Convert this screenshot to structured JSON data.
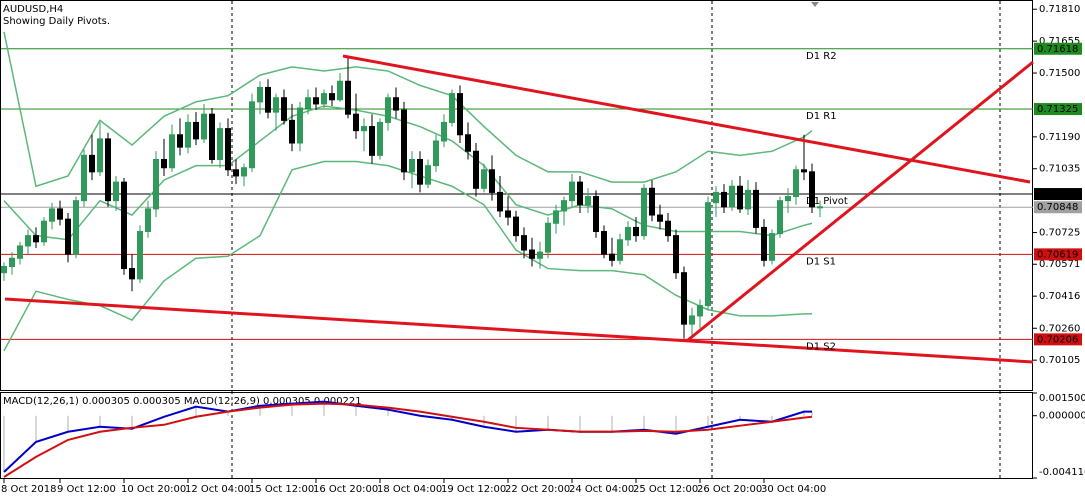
{
  "chart_data": {
    "type": "candlestick",
    "title": "AUDUSD,H4",
    "subtitle": "Showing Daily Pivots.",
    "categories": [
      "8 Oct 2018",
      null,
      null,
      null,
      null,
      null,
      null,
      "9 Oct 12:00",
      null,
      null,
      null,
      null,
      null,
      null,
      null,
      "10 Oct 20:00",
      null,
      null,
      null,
      null,
      null,
      null,
      null,
      "12 Oct 04:00",
      null,
      null,
      null,
      null,
      null,
      null,
      null,
      "15 Oct 12:00",
      null,
      null,
      null,
      null,
      null,
      null,
      null,
      "16 Oct 20:00",
      null,
      null,
      null,
      null,
      null,
      null,
      null,
      "18 Oct 04:00",
      null,
      null,
      null,
      null,
      null,
      null,
      null,
      "19 Oct 12:00",
      null,
      null,
      null,
      null,
      null,
      null,
      null,
      "22 Oct 20:00",
      null,
      null,
      null,
      null,
      null,
      null,
      null,
      "24 Oct 04:00",
      null,
      null,
      null,
      null,
      null,
      null,
      null,
      "25 Oct 12:00",
      null,
      null,
      null,
      null,
      null,
      null,
      null,
      "26 Oct 20:00",
      null,
      null,
      null,
      null,
      null,
      null,
      null,
      "30 Oct 04:00",
      null,
      null,
      null,
      null,
      null,
      null,
      null
    ],
    "ohlc": [
      [
        0.7053,
        0.7058,
        0.7049,
        0.7056
      ],
      [
        0.7056,
        0.7063,
        0.7052,
        0.706
      ],
      [
        0.706,
        0.7068,
        0.7057,
        0.7066
      ],
      [
        0.7066,
        0.7074,
        0.7062,
        0.7071
      ],
      [
        0.7071,
        0.7075,
        0.7065,
        0.7068
      ],
      [
        0.7068,
        0.708,
        0.7066,
        0.7078
      ],
      [
        0.7078,
        0.7087,
        0.7074,
        0.7084
      ],
      [
        0.7084,
        0.7088,
        0.7076,
        0.7079
      ],
      [
        0.7079,
        0.7082,
        0.7058,
        0.7062
      ],
      [
        0.7062,
        0.709,
        0.706,
        0.7088
      ],
      [
        0.7088,
        0.7113,
        0.7085,
        0.711
      ],
      [
        0.711,
        0.712,
        0.7098,
        0.7102
      ],
      [
        0.7102,
        0.7126,
        0.71,
        0.7118
      ],
      [
        0.7118,
        0.7121,
        0.7085,
        0.7088
      ],
      [
        0.7088,
        0.71,
        0.7083,
        0.7097
      ],
      [
        0.7097,
        0.7099,
        0.7052,
        0.7055
      ],
      [
        0.7055,
        0.7062,
        0.7044,
        0.705
      ],
      [
        0.705,
        0.7076,
        0.7048,
        0.7073
      ],
      [
        0.7073,
        0.7088,
        0.707,
        0.7084
      ],
      [
        0.7084,
        0.7112,
        0.708,
        0.7108
      ],
      [
        0.7108,
        0.7118,
        0.71,
        0.7104
      ],
      [
        0.7104,
        0.7125,
        0.7102,
        0.712
      ],
      [
        0.712,
        0.7128,
        0.711,
        0.7114
      ],
      [
        0.7114,
        0.713,
        0.7111,
        0.7126
      ],
      [
        0.7126,
        0.7131,
        0.7115,
        0.7118
      ],
      [
        0.7118,
        0.7135,
        0.7116,
        0.713
      ],
      [
        0.713,
        0.7133,
        0.7106,
        0.7108
      ],
      [
        0.7108,
        0.7126,
        0.7104,
        0.7123
      ],
      [
        0.7123,
        0.7128,
        0.71,
        0.7103
      ],
      [
        0.7103,
        0.7108,
        0.7096,
        0.71
      ],
      [
        0.71,
        0.7106,
        0.7095,
        0.7104
      ],
      [
        0.7104,
        0.714,
        0.7102,
        0.7136
      ],
      [
        0.7136,
        0.7146,
        0.713,
        0.7143
      ],
      [
        0.7143,
        0.7147,
        0.7128,
        0.7131
      ],
      [
        0.7131,
        0.714,
        0.7122,
        0.7138
      ],
      [
        0.7138,
        0.7142,
        0.7125,
        0.7127
      ],
      [
        0.7127,
        0.7135,
        0.7112,
        0.7116
      ],
      [
        0.7116,
        0.7136,
        0.7112,
        0.7133
      ],
      [
        0.7133,
        0.7142,
        0.713,
        0.7138
      ],
      [
        0.7138,
        0.7143,
        0.7132,
        0.7135
      ],
      [
        0.7135,
        0.7142,
        0.7133,
        0.714
      ],
      [
        0.714,
        0.7144,
        0.7134,
        0.7137
      ],
      [
        0.7137,
        0.715,
        0.7136,
        0.7146
      ],
      [
        0.7146,
        0.7158,
        0.7128,
        0.713
      ],
      [
        0.713,
        0.714,
        0.7118,
        0.7122
      ],
      [
        0.7122,
        0.7128,
        0.7112,
        0.7124
      ],
      [
        0.7124,
        0.713,
        0.7106,
        0.711
      ],
      [
        0.711,
        0.7128,
        0.7108,
        0.7126
      ],
      [
        0.7126,
        0.714,
        0.7122,
        0.7138
      ],
      [
        0.7138,
        0.7143,
        0.7128,
        0.7132
      ],
      [
        0.7132,
        0.7136,
        0.7098,
        0.7102
      ],
      [
        0.7102,
        0.7112,
        0.7094,
        0.7108
      ],
      [
        0.7108,
        0.7112,
        0.7092,
        0.7096
      ],
      [
        0.7096,
        0.7108,
        0.7094,
        0.7105
      ],
      [
        0.7105,
        0.712,
        0.7102,
        0.7117
      ],
      [
        0.7117,
        0.713,
        0.7114,
        0.7126
      ],
      [
        0.7126,
        0.7142,
        0.7124,
        0.714
      ],
      [
        0.714,
        0.7144,
        0.7116,
        0.712
      ],
      [
        0.712,
        0.7126,
        0.7108,
        0.7112
      ],
      [
        0.7112,
        0.7116,
        0.709,
        0.7094
      ],
      [
        0.7094,
        0.7106,
        0.7092,
        0.7103
      ],
      [
        0.7103,
        0.711,
        0.7088,
        0.7092
      ],
      [
        0.7092,
        0.71,
        0.708,
        0.7083
      ],
      [
        0.7083,
        0.709,
        0.7076,
        0.708
      ],
      [
        0.708,
        0.7083,
        0.7068,
        0.7071
      ],
      [
        0.7071,
        0.7075,
        0.706,
        0.7064
      ],
      [
        0.7064,
        0.707,
        0.7056,
        0.706
      ],
      [
        0.706,
        0.7068,
        0.7055,
        0.7063
      ],
      [
        0.7063,
        0.708,
        0.706,
        0.7077
      ],
      [
        0.7077,
        0.7086,
        0.7072,
        0.7083
      ],
      [
        0.7083,
        0.709,
        0.7076,
        0.7088
      ],
      [
        0.7088,
        0.7101,
        0.7085,
        0.7097
      ],
      [
        0.7097,
        0.71,
        0.7082,
        0.7086
      ],
      [
        0.7086,
        0.7094,
        0.7082,
        0.709
      ],
      [
        0.709,
        0.7093,
        0.707,
        0.7073
      ],
      [
        0.7073,
        0.7076,
        0.706,
        0.7062
      ],
      [
        0.7062,
        0.707,
        0.7056,
        0.7059
      ],
      [
        0.7059,
        0.7072,
        0.7057,
        0.7069
      ],
      [
        0.7069,
        0.7078,
        0.7066,
        0.7075
      ],
      [
        0.7075,
        0.708,
        0.7068,
        0.7071
      ],
      [
        0.7071,
        0.7096,
        0.7069,
        0.7094
      ],
      [
        0.7094,
        0.7098,
        0.7078,
        0.7081
      ],
      [
        0.7081,
        0.7086,
        0.7074,
        0.7078
      ],
      [
        0.7078,
        0.7082,
        0.7068,
        0.7071
      ],
      [
        0.7071,
        0.7074,
        0.705,
        0.7053
      ],
      [
        0.7053,
        0.7056,
        0.7021,
        0.7028
      ],
      [
        0.7028,
        0.7036,
        0.7022,
        0.7032
      ],
      [
        0.7032,
        0.704,
        0.7026,
        0.7037
      ],
      [
        0.7037,
        0.709,
        0.7035,
        0.7087
      ],
      [
        0.7087,
        0.7095,
        0.708,
        0.7092
      ],
      [
        0.7092,
        0.7096,
        0.7082,
        0.7085
      ],
      [
        0.7085,
        0.7098,
        0.7083,
        0.7095
      ],
      [
        0.7095,
        0.71,
        0.7082,
        0.7084
      ],
      [
        0.7084,
        0.7098,
        0.7081,
        0.7093
      ],
      [
        0.7093,
        0.7097,
        0.7072,
        0.7075
      ],
      [
        0.7075,
        0.7079,
        0.7056,
        0.7059
      ],
      [
        0.7059,
        0.7074,
        0.7057,
        0.7072
      ],
      [
        0.7072,
        0.709,
        0.707,
        0.7088
      ],
      [
        0.7088,
        0.7094,
        0.7082,
        0.709
      ],
      [
        0.709,
        0.7105,
        0.7086,
        0.7103
      ],
      [
        0.7103,
        0.712,
        0.7098,
        0.7102
      ],
      [
        0.7102,
        0.7106,
        0.7082,
        0.7085
      ],
      [
        0.7085,
        0.7088,
        0.708,
        0.7085
      ]
    ],
    "up_color": "#2f9a5a",
    "down_color": "#000000",
    "ylim": [
      0.6996,
      0.7185
    ],
    "yticks": [
      {
        "value": 0.7181,
        "label": "0.71810"
      },
      0.71655,
      {
        "value": 0.715,
        "label": "0.71500"
      },
      {
        "value": 0.7119,
        "label": "0.71190"
      },
      0.71035,
      0.70725,
      0.70571,
      0.70416,
      {
        "value": 0.7026,
        "label": "0.70260"
      },
      0.70105
    ],
    "grid": false,
    "bollinger": {
      "color": "#5cb87a",
      "x": [
        0,
        4,
        8,
        12,
        16,
        20,
        24,
        28,
        32,
        36,
        40,
        44,
        48,
        52,
        56,
        60,
        64,
        68,
        72,
        76,
        80,
        84,
        88,
        92,
        96,
        100,
        101
      ],
      "series": [
        {
          "values": [
            0.717,
            0.7095,
            0.71,
            0.7127,
            0.7115,
            0.7129,
            0.7136,
            0.7139,
            0.7149,
            0.7153,
            0.7151,
            0.7153,
            0.7151,
            0.7144,
            0.7139,
            0.7124,
            0.711,
            0.7102,
            0.7102,
            0.7097,
            0.7097,
            0.7102,
            0.7112,
            0.711,
            0.7112,
            0.7119,
            0.7122
          ]
        },
        {
          "values": [
            0.7088,
            0.7071,
            0.7069,
            0.7088,
            0.7081,
            0.7098,
            0.7105,
            0.7105,
            0.7117,
            0.7129,
            0.7134,
            0.7132,
            0.7129,
            0.7124,
            0.7117,
            0.7105,
            0.7086,
            0.7081,
            0.7086,
            0.7084,
            0.7076,
            0.7073,
            0.7073,
            0.7073,
            0.7071,
            0.7076,
            0.7077
          ]
        },
        {
          "values": [
            0.7015,
            0.7044,
            0.704,
            0.7037,
            0.703,
            0.7049,
            0.706,
            0.7061,
            0.7071,
            0.7103,
            0.7107,
            0.7107,
            0.7105,
            0.71,
            0.7095,
            0.7086,
            0.7064,
            0.7055,
            0.7054,
            0.7054,
            0.7052,
            0.7042,
            0.7035,
            0.7032,
            0.7032,
            0.7033,
            0.7033
          ]
        }
      ]
    },
    "levels": [
      {
        "name": "D1 R2",
        "value": 0.71618,
        "color": "#1f8a1f"
      },
      {
        "name": "D1 R1",
        "value": 0.71325,
        "color": "#1f8a1f"
      },
      {
        "name": "D1 Pivot",
        "value": 0.70912,
        "color": "#000000"
      },
      {
        "name": "D1 S1",
        "value": 0.70619,
        "color": "#d01010"
      },
      {
        "name": "D1 S2",
        "value": 0.70206,
        "color": "#d01010"
      }
    ],
    "current_price": 0.70848,
    "indicator": {
      "title": "MACD(12,26,1) 0.000305 0.000305 MACD(12,26,9) 0.000305 0.000221",
      "ylim": [
        -0.004116,
        0.0015
      ],
      "yticks": [
        {
          "value": 0.0015,
          "label": "0.001500"
        },
        {
          "value": 0,
          "label": "0.000000"
        },
        {
          "value": -0.004116,
          "label": "-0.004116"
        }
      ],
      "x": [
        0,
        4,
        8,
        12,
        16,
        20,
        24,
        28,
        32,
        36,
        40,
        44,
        48,
        52,
        56,
        60,
        64,
        68,
        72,
        76,
        80,
        84,
        88,
        92,
        96,
        100,
        101
      ],
      "series": [
        {
          "color": "#0000c8",
          "values": [
            -0.00372,
            -0.00173,
            -0.00106,
            -0.00073,
            -0.00086,
            -7e-05,
            0.0006,
            0.00027,
            0.00066,
            0.0008,
            0.00093,
            0.00066,
            0.0004,
            0,
            -0.00027,
            -0.00073,
            -0.00106,
            -0.00093,
            -0.00106,
            -0.00106,
            -0.00093,
            -0.00119,
            -0.00073,
            -0.00027,
            -0.0004,
            0.00027,
            0.00027
          ]
        },
        {
          "color": "#d01010",
          "values": [
            -0.00405,
            -0.00272,
            -0.0016,
            -0.00106,
            -0.0008,
            -0.0006,
            -7e-05,
            0.00027,
            0.00053,
            0.00073,
            0.0008,
            0.00073,
            0.00053,
            0.00027,
            -7e-05,
            -0.0004,
            -0.0008,
            -0.00093,
            -0.00106,
            -0.00106,
            -0.001,
            -0.00106,
            -0.00093,
            -0.00066,
            -0.0004,
            -0.00013,
            -7e-05
          ]
        }
      ]
    }
  }
}
